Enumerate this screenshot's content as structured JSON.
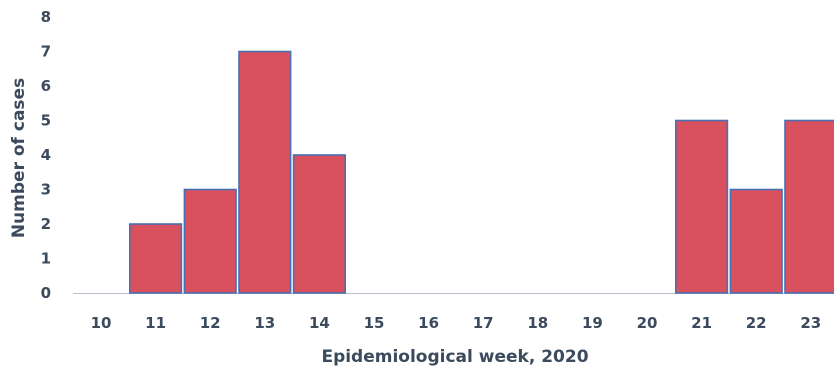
{
  "chart_data": {
    "type": "bar",
    "title": "",
    "xlabel": "Epidemiological week, 2020",
    "ylabel": "Number of cases",
    "categories": [
      "10",
      "11",
      "12",
      "13",
      "14",
      "15",
      "16",
      "17",
      "18",
      "19",
      "20",
      "21",
      "22",
      "23"
    ],
    "values": [
      0,
      2,
      3,
      7,
      4,
      0,
      0,
      0,
      0,
      0,
      0,
      5,
      3,
      5
    ],
    "ylim": [
      0,
      8
    ],
    "yticks": [
      "0",
      "1",
      "2",
      "3",
      "4",
      "5",
      "6",
      "7",
      "8"
    ],
    "grid": false,
    "legend": "none",
    "colors": {
      "bar_fill": "#d9505f",
      "bar_stroke": "#4a6fb5",
      "text": "#3b4a5c",
      "axis": "#b9c2cc"
    }
  }
}
